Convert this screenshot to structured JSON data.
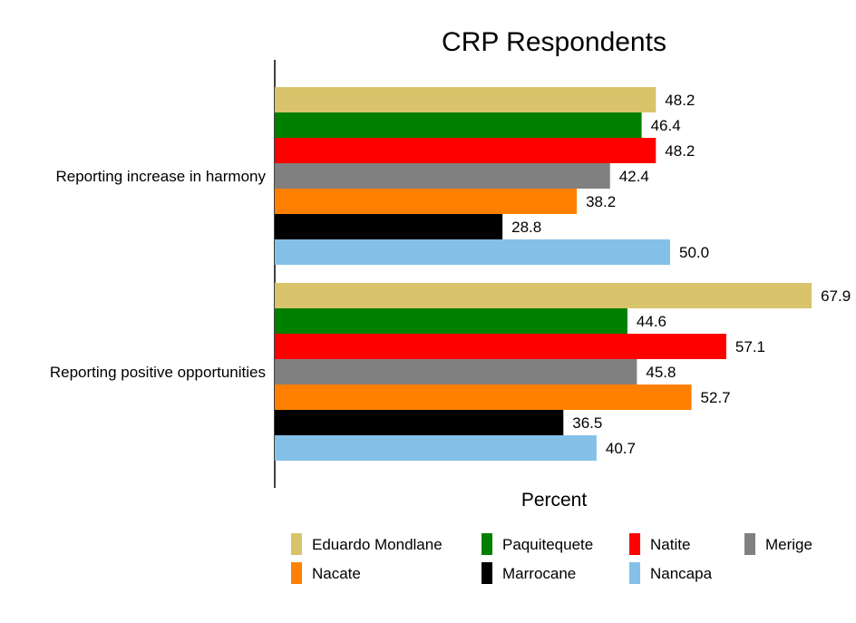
{
  "chart_data": {
    "type": "bar",
    "orientation": "horizontal",
    "title": "CRP Respondents",
    "xlabel": "Percent",
    "ylabel": "",
    "xlim": [
      0,
      68
    ],
    "grid": false,
    "legend_position": "bottom",
    "categories": [
      "Reporting increase in harmony",
      "Reporting positive opportunities"
    ],
    "series": [
      {
        "name": "Eduardo Mondlane",
        "color": "#d9c46b",
        "values": [
          48.2,
          67.9
        ],
        "labels": [
          "48.2",
          "67.9"
        ]
      },
      {
        "name": "Paquitequete",
        "color": "#008000",
        "values": [
          46.4,
          44.6
        ],
        "labels": [
          "46.4",
          "44.6"
        ]
      },
      {
        "name": "Natite",
        "color": "#ff0000",
        "values": [
          48.2,
          57.1
        ],
        "labels": [
          "48.2",
          "57.1"
        ]
      },
      {
        "name": "Merige",
        "color": "#808080",
        "values": [
          42.4,
          45.8
        ],
        "labels": [
          "42.4",
          "45.8"
        ]
      },
      {
        "name": "Nacate",
        "color": "#ff8000",
        "values": [
          38.2,
          52.7
        ],
        "labels": [
          "38.2",
          "52.7"
        ]
      },
      {
        "name": "Marrocane",
        "color": "#000000",
        "values": [
          28.8,
          36.5
        ],
        "labels": [
          "28.8",
          "36.5"
        ]
      },
      {
        "name": "Nancapa",
        "color": "#85c0e8",
        "values": [
          50.0,
          40.7
        ],
        "labels": [
          "50.0",
          "40.7"
        ]
      }
    ]
  }
}
